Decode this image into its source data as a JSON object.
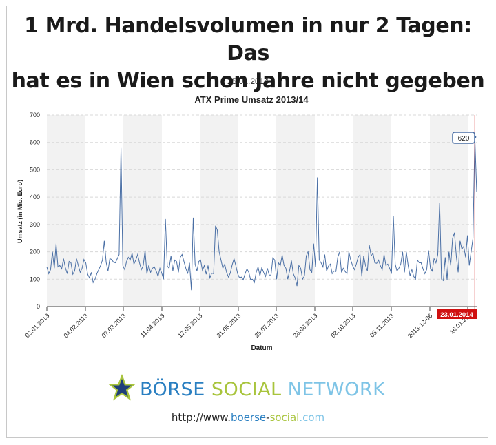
{
  "headline": {
    "line1": "1 Mrd. Handelsvolumen in nur 2 Tagen: Das",
    "line2": "hat es in Wien schon Jahre nicht gegeben"
  },
  "date": "25.01.2014",
  "chart_data": {
    "type": "line",
    "title": "ATX Prime Umsatz 2013/14",
    "xlabel": "Datum",
    "ylabel": "Umsatz (in Mio. Euro)",
    "ylim": [
      0,
      700
    ],
    "yticks": [
      "0",
      "100",
      "200",
      "300",
      "400",
      "500",
      "600",
      "700"
    ],
    "xticks": [
      "02.01.2013",
      "04.02.2013",
      "07.03.2013",
      "11.04.2013",
      "17.05.2013",
      "21.06.2013",
      "25.07.2013",
      "28.08.2013",
      "02.10.2013",
      "05.11.2013",
      "2013-12-06",
      "16.01.2..."
    ],
    "grid": true,
    "alternating_bands": true,
    "series": [
      {
        "color": "#4a6fa5",
        "values": [
          145,
          120,
          135,
          200,
          140,
          230,
          145,
          150,
          138,
          175,
          142,
          120,
          165,
          160,
          118,
          130,
          175,
          150,
          125,
          140,
          172,
          160,
          118,
          105,
          125,
          88,
          100,
          120,
          135,
          150,
          170,
          240,
          162,
          130,
          175,
          172,
          162,
          160,
          175,
          190,
          580,
          150,
          135,
          165,
          180,
          170,
          195,
          155,
          170,
          190,
          160,
          135,
          150,
          205,
          120,
          150,
          125,
          140,
          145,
          130,
          110,
          140,
          122,
          100,
          320,
          148,
          140,
          185,
          130,
          170,
          165,
          125,
          180,
          190,
          165,
          140,
          120,
          160,
          60,
          325,
          155,
          130,
          165,
          170,
          132,
          150,
          118,
          150,
          105,
          122,
          120,
          295,
          280,
          200,
          170,
          140,
          155,
          125,
          108,
          122,
          152,
          175,
          150,
          120,
          105,
          108,
          98,
          120,
          138,
          125,
          98,
          100,
          88,
          125,
          145,
          112,
          142,
          125,
          110,
          140,
          115,
          115,
          178,
          170,
          100,
          160,
          150,
          188,
          150,
          140,
          100,
          130,
          168,
          120,
          105,
          75,
          150,
          140,
          100,
          112,
          185,
          200,
          135,
          125,
          230,
          145,
          472,
          170,
          160,
          145,
          190,
          130,
          148,
          155,
          120,
          130,
          128,
          180,
          200,
          125,
          140,
          128,
          120,
          200,
          170,
          150,
          135,
          155,
          180,
          190,
          110,
          185,
          150,
          130,
          225,
          185,
          195,
          160,
          158,
          170,
          150,
          135,
          190,
          150,
          155,
          140,
          120,
          332,
          155,
          130,
          140,
          155,
          200,
          125,
          200,
          150,
          112,
          135,
          110,
          100,
          170,
          160,
          160,
          138,
          120,
          135,
          205,
          140,
          130,
          175,
          160,
          190,
          380,
          100,
          95,
          180,
          98,
          200,
          150,
          250,
          270,
          185,
          125,
          240,
          210,
          220,
          180,
          260,
          150,
          200,
          250,
          620,
          420
        ]
      }
    ],
    "tooltip": {
      "value_label": "620",
      "date_label": "23.01.2014"
    }
  },
  "logo": {
    "text_part1": "BÖRSE",
    "text_part2": "SOCIAL",
    "text_part3": "NETWORK",
    "star_colors": [
      "#a8c43c",
      "#1f3f7a"
    ],
    "colors": [
      "#2a7fc1",
      "#a8c43c",
      "#7ec4e6"
    ]
  },
  "url": {
    "prefix": "http://www.",
    "part1": "boerse",
    "dash": "-",
    "part2": "social",
    "suffix": ".com"
  }
}
